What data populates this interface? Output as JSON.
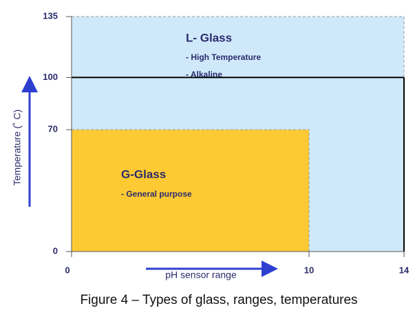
{
  "chart_data": {
    "type": "range",
    "caption": "Figure 4 – Types of glass, ranges, temperatures",
    "x_label": "pH sensor range",
    "y_label": "Temperature (˚ C)",
    "xlim": [
      0,
      14
    ],
    "ylim": [
      0,
      135
    ],
    "xticks": [
      0,
      10,
      14
    ],
    "yticks": [
      0,
      70,
      100,
      135
    ],
    "reference_line": {
      "y": 100,
      "color": "#000000"
    },
    "regions": [
      {
        "name": "L- Glass",
        "x": [
          0,
          14
        ],
        "y": [
          0,
          135
        ],
        "color": "#cfe9fb",
        "notes": [
          "- High Temperature",
          "- Alkaline"
        ]
      },
      {
        "name": "G-Glass",
        "x": [
          0,
          10
        ],
        "y": [
          0,
          70
        ],
        "color": "#fdca33",
        "notes": [
          "- General purpose"
        ]
      }
    ]
  }
}
